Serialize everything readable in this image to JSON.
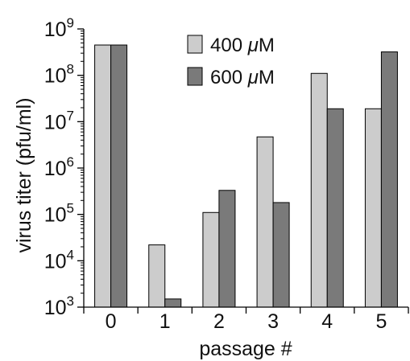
{
  "chart_data": {
    "type": "bar",
    "categories": [
      "0",
      "1",
      "2",
      "3",
      "4",
      "5"
    ],
    "series": [
      {
        "name": "400 μM",
        "color": "#cccccc",
        "values": [
          450000000,
          22000,
          110000,
          4700000,
          110000000,
          19000000
        ]
      },
      {
        "name": "600 μM",
        "color": "#7a7a7a",
        "values": [
          450000000,
          1500,
          330000,
          180000,
          19000000,
          320000000
        ]
      }
    ],
    "xlabel": "passage #",
    "ylabel": "virus titer (pfu/ml)",
    "yscale": "log",
    "ylim": [
      1000,
      1000000000
    ],
    "yticks": [
      {
        "base": "10",
        "exp": "3",
        "value": 1000
      },
      {
        "base": "10",
        "exp": "4",
        "value": 10000
      },
      {
        "base": "10",
        "exp": "5",
        "value": 100000
      },
      {
        "base": "10",
        "exp": "6",
        "value": 1000000
      },
      {
        "base": "10",
        "exp": "7",
        "value": 10000000
      },
      {
        "base": "10",
        "exp": "8",
        "value": 100000000
      },
      {
        "base": "10",
        "exp": "9",
        "value": 1000000000
      }
    ],
    "legend_position": "top-right",
    "grid": false
  }
}
